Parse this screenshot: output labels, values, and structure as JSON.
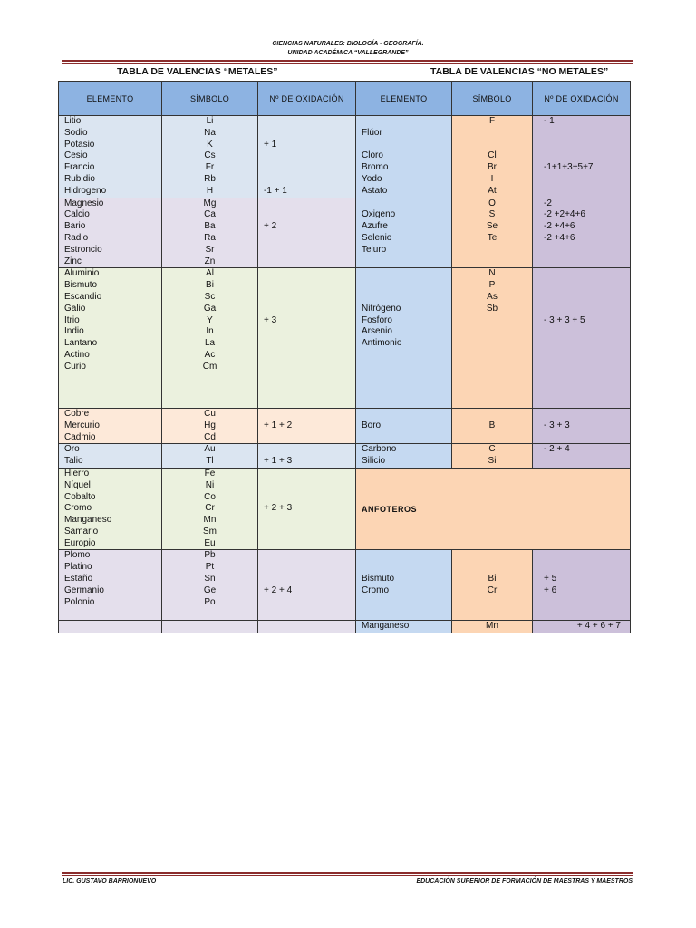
{
  "header": {
    "line1": "CIENCIAS NATURALES: BIOLOGÍA - GEOGRAFÍA.",
    "line2": "UNIDAD ACADÉMICA “VALLEGRANDE”"
  },
  "titles": {
    "metales": "TABLA DE VALENCIAS “METALES”",
    "no_metales": "TABLA DE VALENCIAS “NO METALES”"
  },
  "columns": {
    "elemento_left": "ELEMENTO",
    "simbolo_left": "SÍMBOLO",
    "oxidacion_left": "Nº DE OXIDACIÓN",
    "elemento_right": "ELEMENTO",
    "simbolo_right": "SÍMBOLO",
    "oxidacion_right": "Nº DE OXIDACIÓN"
  },
  "rows": [
    {
      "metal": {
        "elements": [
          "Litio",
          "Sodio",
          "Potasio",
          "Cesio",
          "Francio",
          "Rubidio",
          "Hidrogeno"
        ],
        "symbols": [
          "Li",
          "Na",
          "K",
          "Cs",
          "Fr",
          "Rb",
          "H"
        ],
        "oxidation": [
          "",
          "",
          "+ 1",
          "",
          "",
          "",
          "-1 + 1"
        ]
      },
      "nonmetal": {
        "elements": [
          "",
          "Flúor",
          "",
          "Cloro",
          "Bromo",
          "Yodo",
          "Ástato"
        ],
        "symbols": [
          "F",
          "",
          "",
          "Cl",
          "Br",
          "I",
          "At"
        ],
        "oxidation": [
          "-     1",
          "",
          "",
          "",
          "-1+1+3+5+7",
          "",
          ""
        ]
      }
    },
    {
      "metal": {
        "elements": [
          "Magnesio",
          "Calcio",
          "Bario",
          "Radio",
          "Estroncio",
          "Zinc"
        ],
        "symbols": [
          "Mg",
          "Ca",
          "Ba",
          "Ra",
          "Sr",
          "Zn"
        ],
        "oxidation": [
          "",
          "",
          "+ 2",
          "",
          "",
          ""
        ]
      },
      "nonmetal": {
        "elements": [
          "",
          "Oxigeno",
          "Azufre",
          "Selenio",
          "Teluro",
          ""
        ],
        "symbols": [
          "O",
          "S",
          "Se",
          "Te",
          "",
          ""
        ],
        "oxidation": [
          "-2",
          "-2 +2+4+6",
          "-2 +4+6",
          "-2 +4+6",
          "",
          ""
        ]
      }
    },
    {
      "metal": {
        "elements": [
          "Aluminio",
          "Bismuto",
          "Escandio",
          "Galio",
          "Itrio",
          "Indio",
          "Lantano",
          "Actino",
          "Curio"
        ],
        "symbols": [
          "Al",
          "Bi",
          "Sc",
          "Ga",
          "Y",
          "In",
          "La",
          "Ac",
          "Cm"
        ],
        "oxidation": [
          "",
          "",
          "",
          "",
          "+ 3",
          "",
          "",
          "",
          ""
        ]
      }
    },
    {
      "metal": {
        "elements": [
          "Cobre",
          "Mercurio",
          "Cadmio"
        ],
        "symbols": [
          "Cu",
          "Hg",
          "Cd"
        ],
        "oxidation": [
          "",
          "+ 1 + 2",
          ""
        ]
      },
      "nonmetal": {
        "elements": [
          "",
          "Boro",
          ""
        ],
        "symbols": [
          "",
          "B",
          ""
        ],
        "oxidation": [
          "",
          "-      3 + 3",
          ""
        ]
      }
    },
    {
      "metal": {
        "elements": [
          "Oro",
          "Talio"
        ],
        "symbols": [
          "Au",
          "Tl"
        ],
        "oxidation": [
          "",
          "+ 1 + 3"
        ]
      },
      "nonmetal": {
        "elements": [
          "Carbono",
          "Silicio"
        ],
        "symbols": [
          "C",
          "Si"
        ],
        "oxidation": [
          "-      2 + 4",
          ""
        ]
      }
    },
    {
      "metal": {
        "elements": [
          "Hierro",
          "Níquel",
          "Cobalto",
          "Cromo",
          "Manganeso",
          "Samario",
          "Europio"
        ],
        "symbols": [
          "Fe",
          "Ni",
          "Co",
          "Cr",
          "Mn",
          "Sm",
          "Eu"
        ],
        "oxidation": [
          "",
          "",
          "",
          "+ 2 + 3",
          "",
          "",
          ""
        ]
      },
      "anfoteros": "ANFOTEROS"
    },
    {
      "metal": {
        "elements": [
          "Plomo",
          "Platino",
          "Estaño",
          "Germanio",
          "Polonio",
          ""
        ],
        "symbols": [
          "Pb",
          "Pt",
          "Sn",
          "Ge",
          "Po",
          ""
        ],
        "oxidation": [
          "",
          "",
          "",
          "+ 2 + 4",
          "",
          ""
        ]
      },
      "nonmetal": {
        "elements": [
          "",
          "",
          "Bismuto",
          "Cromo",
          "",
          ""
        ],
        "symbols": [
          "",
          "",
          "Bi",
          "Cr",
          "",
          ""
        ],
        "oxidation": [
          "",
          "",
          "+ 5",
          "+ 6",
          "",
          ""
        ]
      }
    }
  ],
  "group3_nonmetal": {
    "elements": [
      "",
      "",
      "",
      "Nitrógeno",
      "Fosforo",
      "Arsenio",
      "Antimonio",
      "",
      "",
      "",
      "",
      ""
    ],
    "symbols": [
      "N",
      "P",
      "As",
      "Sb",
      "",
      "",
      "",
      "",
      "",
      "",
      "",
      ""
    ],
    "oxidation": [
      "",
      "",
      "",
      "",
      "-      3 + 3 + 5",
      "",
      "",
      "",
      "",
      "",
      "",
      ""
    ]
  },
  "last_row": {
    "element": "Manganeso",
    "symbol": "Mn",
    "oxidation": "+ 4 + 6 + 7"
  },
  "footer": {
    "left": "LIC. GUSTAVO BARRIONUEVO",
    "right": "EDUCACIÓN SUPERIOR DE FORMACIÓN DE MAESTRAS Y MAESTROS"
  },
  "colors": {
    "header_blue": "#8db3e2",
    "rule_red": "#8b2d2d",
    "nonmetal_element": "#c5d9f1",
    "nonmetal_symbol": "#fcd5b4",
    "nonmetal_oxidation": "#ccc0da"
  }
}
